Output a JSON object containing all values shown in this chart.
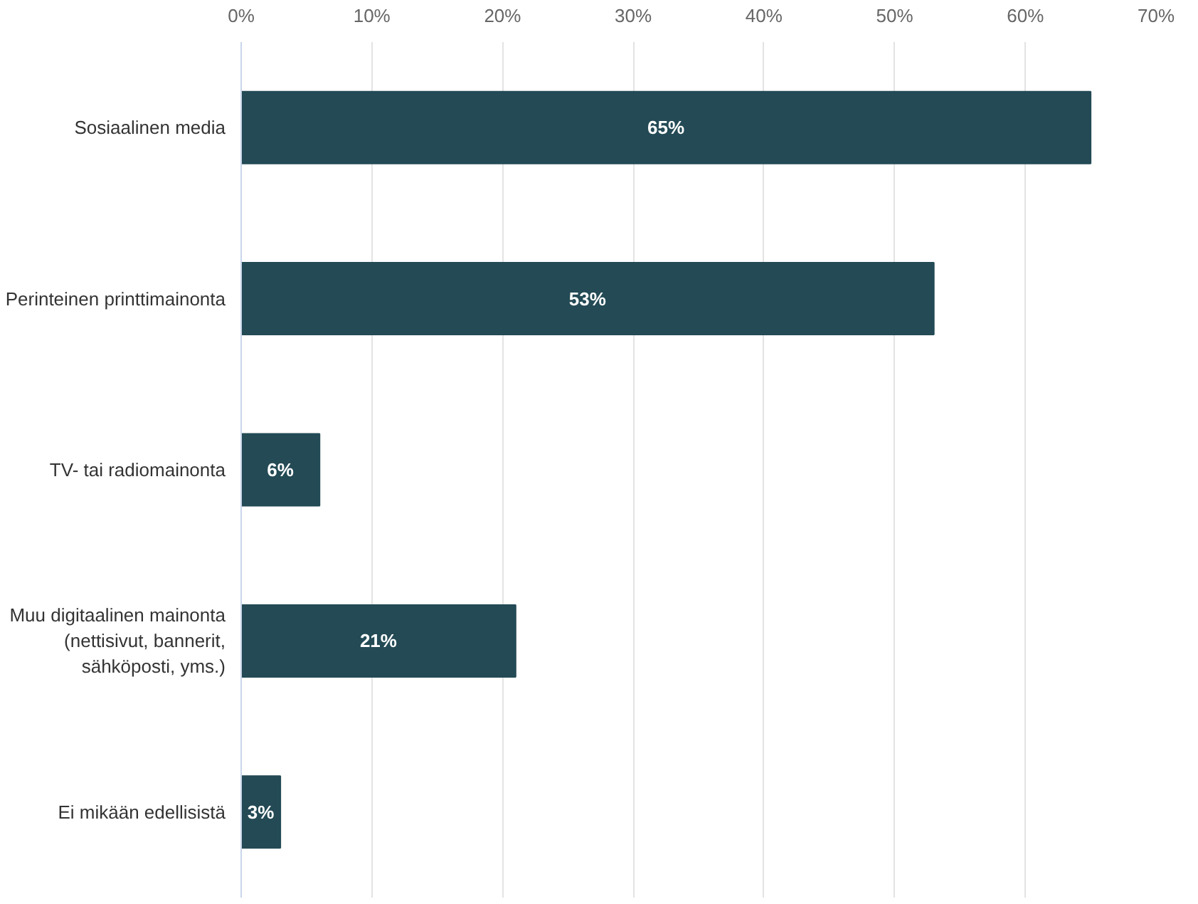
{
  "chart_data": {
    "type": "bar",
    "orientation": "horizontal",
    "categories": [
      "Sosiaalinen media",
      "Perinteinen printtimainonta",
      "TV- tai radiomainonta",
      "Muu digitaalinen mainonta (nettisivut, bannerit, sähköposti, yms.)",
      "Ei mikään edellisistä"
    ],
    "values": [
      65,
      53,
      6,
      21,
      3
    ],
    "color": "#234a55",
    "value_labels": [
      "65%",
      "53%",
      "6%",
      "21%",
      "3%"
    ],
    "xlim": [
      0,
      70
    ],
    "xticks": [
      {
        "value": 0,
        "label": "0%"
      },
      {
        "value": 10,
        "label": "10%"
      },
      {
        "value": 20,
        "label": "20%"
      },
      {
        "value": 30,
        "label": "30%"
      },
      {
        "value": 40,
        "label": "40%"
      },
      {
        "value": 50,
        "label": "50%"
      },
      {
        "value": 60,
        "label": "60%"
      },
      {
        "value": 70,
        "label": "70%"
      }
    ],
    "grid": "x"
  }
}
